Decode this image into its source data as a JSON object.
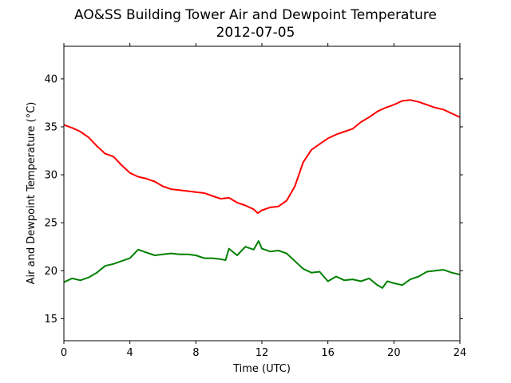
{
  "chart_data": {
    "type": "line",
    "title": "AO&SS Building Tower Air and Dewpoint Temperature",
    "subtitle": "2012-07-05",
    "xlabel": "Time (UTC)",
    "ylabel": "Air and Dewpoint Temperature (°C)",
    "xlim": [
      0,
      24
    ],
    "ylim": [
      12.7,
      43.4
    ],
    "xticks": [
      0,
      4,
      8,
      12,
      16,
      20,
      24
    ],
    "yticks": [
      15,
      20,
      25,
      30,
      35,
      40
    ],
    "grid": false,
    "series": [
      {
        "color": "#ff0000",
        "x": [
          0,
          0.5,
          1,
          1.5,
          2,
          2.5,
          3,
          3.5,
          4,
          4.5,
          5,
          5.5,
          6,
          6.5,
          7,
          7.5,
          8,
          8.5,
          9,
          9.5,
          10,
          10.5,
          11,
          11.5,
          11.75,
          12,
          12.5,
          13,
          13.5,
          14,
          14.5,
          15,
          15.5,
          16,
          16.5,
          17,
          17.5,
          18,
          18.5,
          19,
          19.5,
          20,
          20.5,
          21,
          21.5,
          22,
          22.5,
          23,
          23.5,
          24
        ],
        "y": [
          35.2,
          34.9,
          34.5,
          33.9,
          33.0,
          32.2,
          31.9,
          31.0,
          30.2,
          29.8,
          29.6,
          29.3,
          28.8,
          28.5,
          28.4,
          28.3,
          28.2,
          28.1,
          27.8,
          27.5,
          27.6,
          27.1,
          26.8,
          26.4,
          26.0,
          26.3,
          26.6,
          26.7,
          27.3,
          28.8,
          31.3,
          32.6,
          33.2,
          33.8,
          34.2,
          34.5,
          34.8,
          35.5,
          36.0,
          36.6,
          37.0,
          37.3,
          37.7,
          37.8,
          37.6,
          37.3,
          37.0,
          36.8,
          36.4,
          36.0
        ]
      },
      {
        "color": "#008000",
        "x": [
          0,
          0.5,
          1,
          1.5,
          2,
          2.5,
          3,
          3.5,
          4,
          4.5,
          5,
          5.5,
          6,
          6.5,
          7,
          7.5,
          8,
          8.5,
          9,
          9.5,
          9.8,
          10,
          10.5,
          11,
          11.5,
          11.8,
          12,
          12.5,
          13,
          13.5,
          14,
          14.5,
          15,
          15.5,
          16,
          16.5,
          17,
          17.5,
          18,
          18.5,
          19,
          19.3,
          19.6,
          20,
          20.5,
          21,
          21.5,
          22,
          22.5,
          23,
          23.5,
          24
        ],
        "y": [
          18.8,
          19.2,
          19.0,
          19.3,
          19.8,
          20.5,
          20.7,
          21.0,
          21.3,
          22.2,
          21.9,
          21.6,
          21.7,
          21.8,
          21.7,
          21.7,
          21.6,
          21.3,
          21.3,
          21.2,
          21.1,
          22.3,
          21.6,
          22.5,
          22.2,
          23.1,
          22.3,
          22.0,
          22.1,
          21.8,
          21.0,
          20.2,
          19.8,
          19.9,
          18.9,
          19.4,
          19.0,
          19.1,
          18.9,
          19.2,
          18.5,
          18.2,
          18.9,
          18.7,
          18.5,
          19.1,
          19.4,
          19.9,
          20.0,
          20.1,
          19.8,
          19.6
        ]
      }
    ]
  }
}
